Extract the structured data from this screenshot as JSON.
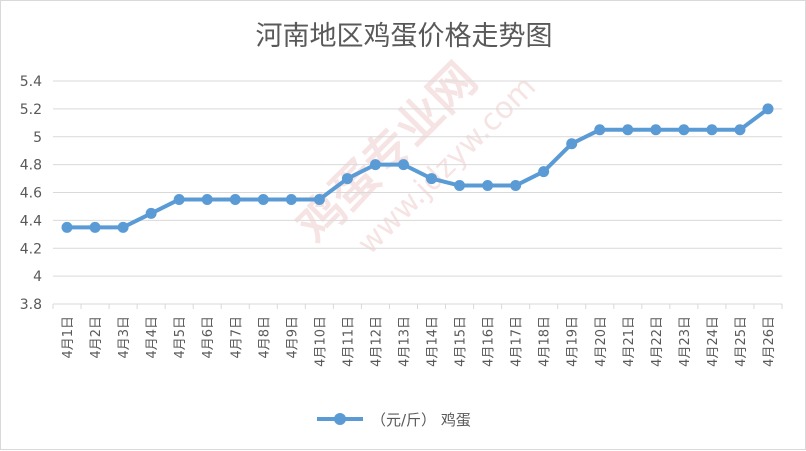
{
  "watermark": {
    "text_cn": "鸡蛋专业网",
    "text_url": "www.jdzyw.com"
  },
  "chart_data": {
    "type": "line",
    "title": "河南地区鸡蛋价格走势图",
    "xlabel": "",
    "ylabel": "",
    "categories": [
      "4月1日",
      "4月2日",
      "4月3日",
      "4月4日",
      "4月5日",
      "4月6日",
      "4月7日",
      "4月8日",
      "4月9日",
      "4月10日",
      "4月11日",
      "4月12日",
      "4月13日",
      "4月14日",
      "4月15日",
      "4月16日",
      "4月17日",
      "4月18日",
      "4月19日",
      "4月20日",
      "4月21日",
      "4月22日",
      "4月23日",
      "4月24日",
      "4月25日",
      "4月26日"
    ],
    "series": [
      {
        "name": "（元/斤） 鸡蛋",
        "color": "#5b9bd5",
        "values": [
          4.35,
          4.35,
          4.35,
          4.45,
          4.55,
          4.55,
          4.55,
          4.55,
          4.55,
          4.55,
          4.7,
          4.8,
          4.8,
          4.7,
          4.65,
          4.65,
          4.65,
          4.75,
          4.95,
          5.05,
          5.05,
          5.05,
          5.05,
          5.05,
          5.05,
          5.2
        ]
      }
    ],
    "ylim": [
      3.8,
      5.4
    ],
    "yticks": [
      "3.8",
      "4",
      "4.2",
      "4.4",
      "4.6",
      "4.8",
      "5",
      "5.2",
      "5.4"
    ],
    "ytick_values": [
      3.8,
      4.0,
      4.2,
      4.4,
      4.6,
      4.8,
      5.0,
      5.2,
      5.4
    ],
    "grid": true,
    "legend_position": "bottom"
  }
}
